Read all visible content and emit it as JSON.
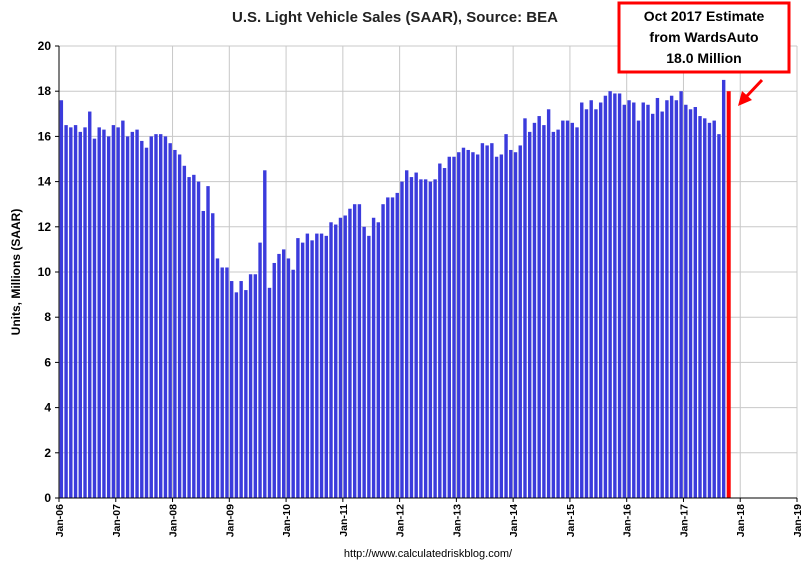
{
  "chart_data": {
    "type": "bar",
    "title": "U.S. Light Vehicle Sales (SAAR), Source: BEA",
    "ylabel": "Units, Millions (SAAR)",
    "xlabel": "",
    "source": "http://www.calculatedriskblog.com/",
    "ylim": [
      0,
      20
    ],
    "yticks": [
      0,
      2,
      4,
      6,
      8,
      10,
      12,
      14,
      16,
      18,
      20
    ],
    "xticks": [
      "Jan-06",
      "Jan-07",
      "Jan-08",
      "Jan-09",
      "Jan-10",
      "Jan-11",
      "Jan-12",
      "Jan-13",
      "Jan-14",
      "Jan-15",
      "Jan-16",
      "Jan-17",
      "Jan-18",
      "Jan-19"
    ],
    "grid": true,
    "bar_color": "#3b3bdc",
    "estimate_color": "#ff0000",
    "start_month": "Jan-06",
    "values": [
      17.6,
      16.5,
      16.4,
      16.5,
      16.2,
      16.4,
      17.1,
      15.9,
      16.4,
      16.3,
      16.0,
      16.5,
      16.4,
      16.7,
      16.0,
      16.2,
      16.3,
      15.8,
      15.5,
      16.0,
      16.1,
      16.1,
      16.0,
      15.7,
      15.4,
      15.2,
      14.7,
      14.2,
      14.3,
      14.0,
      12.7,
      13.8,
      12.6,
      10.6,
      10.2,
      10.2,
      9.6,
      9.1,
      9.6,
      9.2,
      9.9,
      9.9,
      11.3,
      14.5,
      9.3,
      10.4,
      10.8,
      11.0,
      10.6,
      10.1,
      11.5,
      11.3,
      11.7,
      11.4,
      11.7,
      11.7,
      11.6,
      12.2,
      12.1,
      12.4,
      12.5,
      12.8,
      13.0,
      13.0,
      12.0,
      11.6,
      12.4,
      12.2,
      13.0,
      13.3,
      13.3,
      13.5,
      14.0,
      14.5,
      14.2,
      14.4,
      14.1,
      14.1,
      14.0,
      14.1,
      14.8,
      14.6,
      15.1,
      15.1,
      15.3,
      15.5,
      15.4,
      15.3,
      15.2,
      15.7,
      15.6,
      15.7,
      15.1,
      15.2,
      16.1,
      15.4,
      15.3,
      15.6,
      16.8,
      16.2,
      16.6,
      16.9,
      16.5,
      17.2,
      16.2,
      16.3,
      16.7,
      16.7,
      16.6,
      16.4,
      17.5,
      17.2,
      17.6,
      17.2,
      17.5,
      17.8,
      18.0,
      17.9,
      17.9,
      17.4,
      17.6,
      17.5,
      16.7,
      17.5,
      17.4,
      17.0,
      17.7,
      17.1,
      17.6,
      17.8,
      17.6,
      18.0,
      17.4,
      17.2,
      17.3,
      16.9,
      16.8,
      16.6,
      16.7,
      16.1,
      18.5
    ],
    "estimate": {
      "label": "Oct 2017",
      "value": 18.0
    },
    "annotation": [
      "Oct 2017 Estimate",
      "from WardsAuto",
      "18.0 Million"
    ]
  }
}
